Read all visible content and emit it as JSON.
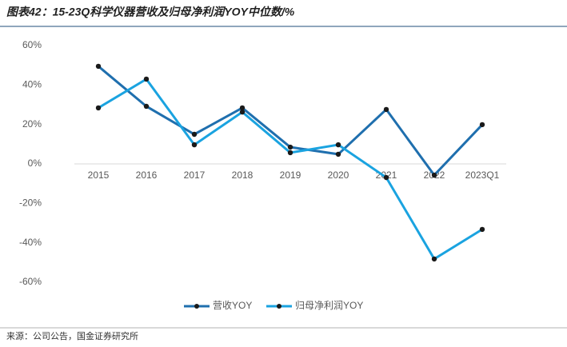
{
  "title": "图表42：15-23Q科学仪器营收及归母净利润YOY中位数/%",
  "source": "来源：公司公告，国金证券研究所",
  "chart_data": {
    "type": "line",
    "categories": [
      "2015",
      "2016",
      "2017",
      "2018",
      "2019",
      "2020",
      "2021",
      "2022",
      "2023Q1"
    ],
    "series": [
      {
        "name": "营收YOY",
        "color": "#1f6fae",
        "values": [
          49.5,
          29.2,
          15,
          28.4,
          8.5,
          4.9,
          27.6,
          -5.7,
          19.9
        ]
      },
      {
        "name": "归母净利润YOY",
        "color": "#1aa3e0",
        "values": [
          28.4,
          43,
          9.7,
          26.3,
          5.7,
          9.7,
          -6.9,
          -48.2,
          -33.2
        ]
      }
    ],
    "ylim": [
      -60,
      60
    ],
    "yticks": [
      {
        "value": -60,
        "label": "-60%"
      },
      {
        "value": -40,
        "label": "-40%"
      },
      {
        "value": -20,
        "label": "-20%"
      },
      {
        "value": 0,
        "label": "0%"
      },
      {
        "value": 20,
        "label": "20%"
      },
      {
        "value": 40,
        "label": "40%"
      },
      {
        "value": 60,
        "label": "60%"
      }
    ],
    "legend": "bottom"
  }
}
